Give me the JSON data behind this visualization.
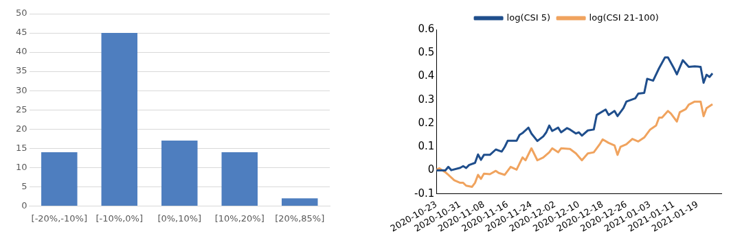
{
  "chart_data": [
    {
      "type": "bar",
      "categories": [
        "[-20%,-10%]",
        "[-10%,0%]",
        "[0%,10%]",
        "[10%,20%]",
        "[20%,85%]"
      ],
      "values": [
        14,
        45,
        17,
        14,
        2
      ],
      "color": "#4e7ebf",
      "ylim": [
        0,
        50
      ],
      "yticks": [
        0,
        5,
        10,
        15,
        20,
        25,
        30,
        35,
        40,
        45,
        50
      ],
      "grid": "y",
      "legend": false
    },
    {
      "type": "line",
      "legend": "top",
      "grid": false,
      "xlim": [
        "2020-10-23",
        "2021-01-27"
      ],
      "xticks": [
        "2020-10-23",
        "2020-10-31",
        "2020-11-08",
        "2020-11-16",
        "2020-11-24",
        "2020-12-02",
        "2020-12-10",
        "2020-12-18",
        "2020-12-26",
        "2021-01-03",
        "2021-01-11",
        "2021-01-19"
      ],
      "ylim": [
        -0.1,
        0.6
      ],
      "yticks": [
        -0.1,
        0,
        0.1,
        0.2,
        0.3,
        0.4,
        0.5,
        0.6
      ],
      "series": [
        {
          "name": "log(CSI 5)",
          "color": "#1f4e8c",
          "x": [
            "2020-10-23",
            "2020-10-26",
            "2020-10-27",
            "2020-10-28",
            "2020-10-31",
            "2020-11-01",
            "2020-11-02",
            "2020-11-03",
            "2020-11-05",
            "2020-11-06",
            "2020-11-07",
            "2020-11-08",
            "2020-11-10",
            "2020-11-12",
            "2020-11-14",
            "2020-11-15",
            "2020-11-16",
            "2020-11-19",
            "2020-11-20",
            "2020-11-21",
            "2020-11-23",
            "2020-11-24",
            "2020-11-26",
            "2020-11-28",
            "2020-11-29",
            "2020-11-30",
            "2020-12-01",
            "2020-12-03",
            "2020-12-04",
            "2020-12-06",
            "2020-12-07",
            "2020-12-09",
            "2020-12-10",
            "2020-12-11",
            "2020-12-13",
            "2020-12-15",
            "2020-12-16",
            "2020-12-19",
            "2020-12-20",
            "2020-12-22",
            "2020-12-23",
            "2020-12-25",
            "2020-12-26",
            "2020-12-29",
            "2020-12-30",
            "2021-01-01",
            "2021-01-02",
            "2021-01-04",
            "2021-01-06",
            "2021-01-08",
            "2021-01-09",
            "2021-01-11",
            "2021-01-12",
            "2021-01-14",
            "2021-01-16",
            "2021-01-18",
            "2021-01-20",
            "2021-01-21",
            "2021-01-22",
            "2021-01-23",
            "2021-01-24"
          ],
          "values": [
            0.0,
            0.0,
            0.015,
            0.001,
            0.011,
            0.018,
            0.01,
            0.023,
            0.032,
            0.068,
            0.045,
            0.066,
            0.066,
            0.089,
            0.08,
            0.1,
            0.126,
            0.126,
            0.151,
            0.159,
            0.182,
            0.157,
            0.125,
            0.145,
            0.162,
            0.191,
            0.168,
            0.182,
            0.162,
            0.18,
            0.174,
            0.157,
            0.162,
            0.148,
            0.17,
            0.174,
            0.236,
            0.259,
            0.236,
            0.253,
            0.231,
            0.265,
            0.293,
            0.307,
            0.327,
            0.33,
            0.39,
            0.382,
            0.435,
            0.481,
            0.481,
            0.435,
            0.409,
            0.469,
            0.441,
            0.443,
            0.441,
            0.373,
            0.407,
            0.398,
            0.413
          ]
        },
        {
          "name": "log(CSI 21-100)",
          "color": "#f0a35e",
          "x": [
            "2020-10-23",
            "2020-10-24",
            "2020-10-26",
            "2020-10-27",
            "2020-10-29",
            "2020-10-31",
            "2020-11-01",
            "2020-11-02",
            "2020-11-04",
            "2020-11-05",
            "2020-11-06",
            "2020-11-07",
            "2020-11-08",
            "2020-11-10",
            "2020-11-12",
            "2020-11-13",
            "2020-11-15",
            "2020-11-17",
            "2020-11-19",
            "2020-11-21",
            "2020-11-22",
            "2020-11-24",
            "2020-11-26",
            "2020-11-28",
            "2020-11-30",
            "2020-12-01",
            "2020-12-03",
            "2020-12-04",
            "2020-12-07",
            "2020-12-09",
            "2020-12-11",
            "2020-12-13",
            "2020-12-15",
            "2020-12-17",
            "2020-12-18",
            "2020-12-20",
            "2020-12-22",
            "2020-12-23",
            "2020-12-24",
            "2020-12-26",
            "2020-12-28",
            "2020-12-30",
            "2021-01-01",
            "2021-01-03",
            "2021-01-05",
            "2021-01-06",
            "2021-01-07",
            "2021-01-09",
            "2021-01-10",
            "2021-01-12",
            "2021-01-13",
            "2021-01-15",
            "2021-01-16",
            "2021-01-18",
            "2021-01-20",
            "2021-01-21",
            "2021-01-22",
            "2021-01-24"
          ],
          "values": [
            0.003,
            0.009,
            -0.008,
            -0.019,
            -0.042,
            -0.053,
            -0.053,
            -0.065,
            -0.07,
            -0.053,
            -0.019,
            -0.036,
            -0.014,
            -0.016,
            -0.002,
            -0.011,
            -0.019,
            0.015,
            0.003,
            0.055,
            0.043,
            0.094,
            0.043,
            0.055,
            0.077,
            0.094,
            0.077,
            0.094,
            0.091,
            0.072,
            0.043,
            0.072,
            0.077,
            0.111,
            0.132,
            0.117,
            0.106,
            0.066,
            0.1,
            0.111,
            0.134,
            0.123,
            0.14,
            0.174,
            0.191,
            0.225,
            0.225,
            0.253,
            0.242,
            0.208,
            0.248,
            0.261,
            0.28,
            0.293,
            0.293,
            0.231,
            0.265,
            0.282
          ]
        }
      ]
    }
  ]
}
